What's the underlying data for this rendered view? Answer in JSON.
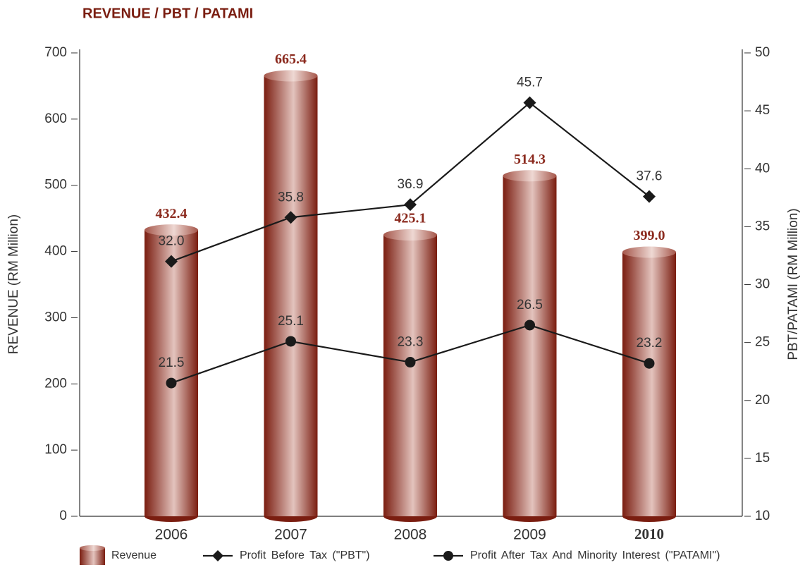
{
  "chart_data": {
    "type": "bar",
    "title": "REVENUE / PBT / PATAMI",
    "categories": [
      "2006",
      "2007",
      "2008",
      "2009",
      "2010"
    ],
    "highlight": "2010",
    "y_label": "REVENUE (RM Million)",
    "y2_label": "PBT/PATAMI (RM Million)",
    "ylim": [
      0,
      700
    ],
    "yticks": [
      0,
      100,
      200,
      300,
      400,
      500,
      600,
      700
    ],
    "y2lim": [
      10,
      50
    ],
    "y2ticks": [
      10,
      15,
      20,
      25,
      30,
      35,
      40,
      45,
      50
    ],
    "series": [
      {
        "name": "Revenue",
        "type": "bar",
        "color": "#8b2a1e",
        "values": [
          432.4,
          665.4,
          425.1,
          514.3,
          399.0
        ],
        "value_labels": [
          "432.4",
          "665.4",
          "425.1",
          "514.3",
          "399.0"
        ]
      },
      {
        "name": "Profit Before Tax (\"PBT\")",
        "type": "line",
        "marker": "diamond",
        "axis": "y2",
        "color": "#1a1a1a",
        "values": [
          32.0,
          35.8,
          36.9,
          45.7,
          37.6
        ],
        "value_labels": [
          "32.0",
          "35.8",
          "36.9",
          "45.7",
          "37.6"
        ]
      },
      {
        "name": "Profit After Tax And Minority Interest (\"PATAMI\")",
        "type": "line",
        "marker": "circle",
        "axis": "y2",
        "color": "#1a1a1a",
        "values": [
          21.5,
          25.1,
          23.3,
          26.5,
          23.2
        ],
        "value_labels": [
          "21.5",
          "25.1",
          "23.3",
          "26.5",
          "23.2"
        ]
      }
    ]
  }
}
